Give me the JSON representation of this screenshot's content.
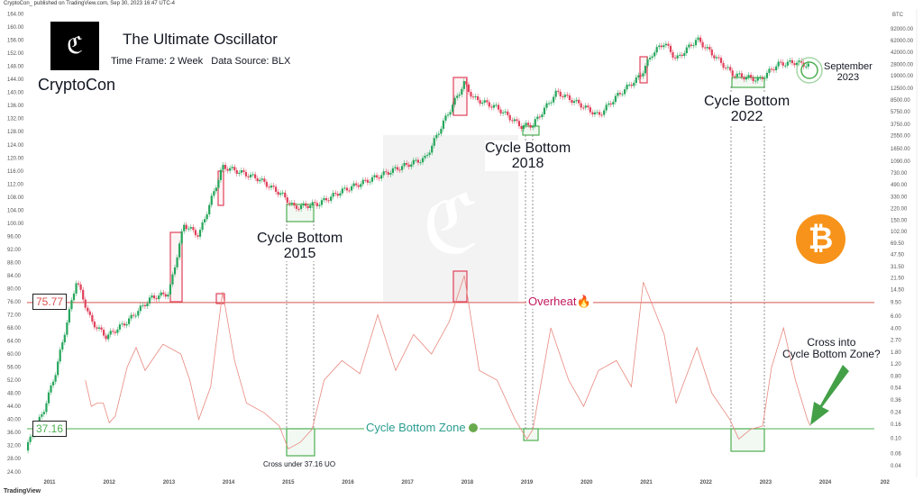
{
  "header": {
    "published": "CryptoCon_ published on TradingView.com, Sep 30, 2023 16:47 UTC-4"
  },
  "brand": {
    "name": "CryptoCon",
    "logo": "CC-monogram"
  },
  "title": "The Ultimate Oscillator",
  "subtitle": "Time Frame: 2 Week   Data Source: BLX",
  "footer": {
    "logo": "TradingView"
  },
  "colors": {
    "up": "#26a65b",
    "down": "#e0405a",
    "oscillator": "#e8897f",
    "overheat": "#d9534f",
    "bottom": "#4caf50",
    "zone_text": "#2a9d8f",
    "bitcoin": "#f7931a"
  },
  "annotations": {
    "overheat_value": "75.77",
    "bottom_value": "37.16",
    "overheat_label": "Overheat🔥",
    "zone_label": "Cycle Bottom Zone",
    "cb2015_a": "Cycle Bottom",
    "cb2015_b": "2015",
    "cb2018_a": "Cycle Bottom",
    "cb2018_b": "2018",
    "cb2022_a": "Cycle Bottom",
    "cb2022_b": "2022",
    "sept_a": "September",
    "sept_b": "2023",
    "cross_under": "Cross under 37.16 UO",
    "cross_into_a": "Cross into",
    "cross_into_b": "Cycle Bottom Zone?",
    "right_unit": "BTC",
    "bitcoin_icon": "bitcoin-logo"
  },
  "chart_data": {
    "type": "line",
    "x_ticks": [
      "2011",
      "2012",
      "2013",
      "2014",
      "2015",
      "2016",
      "2017",
      "2018",
      "2019",
      "2020",
      "2021",
      "2022",
      "2023",
      "2024",
      "202"
    ],
    "left_axis": {
      "ticks": [
        164,
        160,
        156,
        152,
        148,
        144,
        140,
        136,
        132,
        128,
        124,
        120,
        116,
        112,
        108,
        104,
        100,
        96,
        92,
        88,
        84,
        80,
        76,
        72,
        68,
        64,
        60,
        56,
        52,
        48,
        44,
        40,
        36,
        32,
        28,
        24
      ],
      "ylim": [
        22,
        165
      ]
    },
    "right_axis": {
      "scale": "log",
      "ticks": [
        "92000.00",
        "62000.00",
        "42000.00",
        "28000.00",
        "19000.00",
        "12500.00",
        "8500.00",
        "5750.00",
        "3750.00",
        "2550.00",
        "1650.00",
        "1090.00",
        "730.00",
        "490.00",
        "330.00",
        "220.00",
        "150.00",
        "102.00",
        "69.50",
        "47.50",
        "31.50",
        "21.50",
        "14.50",
        "9.50",
        "6.00",
        "4.00",
        "2.70",
        "1.80",
        "1.20",
        "0.80",
        "0.54",
        "0.36",
        "0.24",
        "0.16",
        "0.10",
        "0.06",
        "0.04"
      ]
    },
    "levels": {
      "overheat": 75.77,
      "cycle_bottom": 37.16
    },
    "series": [
      {
        "name": "BTC",
        "axis": "right",
        "points": [
          [
            2010.6,
            0.07
          ],
          [
            2010.9,
            0.25
          ],
          [
            2011.1,
            0.9
          ],
          [
            2011.45,
            20
          ],
          [
            2011.7,
            5
          ],
          [
            2011.95,
            3
          ],
          [
            2012.3,
            5
          ],
          [
            2012.7,
            11
          ],
          [
            2013.0,
            13
          ],
          [
            2013.25,
            130
          ],
          [
            2013.5,
            90
          ],
          [
            2013.9,
            900
          ],
          [
            2014.1,
            800
          ],
          [
            2014.5,
            600
          ],
          [
            2014.9,
            350
          ],
          [
            2015.1,
            230
          ],
          [
            2015.5,
            260
          ],
          [
            2015.9,
            400
          ],
          [
            2016.5,
            650
          ],
          [
            2016.9,
            900
          ],
          [
            2017.3,
            1200
          ],
          [
            2017.6,
            4000
          ],
          [
            2017.95,
            15000
          ],
          [
            2018.1,
            9000
          ],
          [
            2018.5,
            6500
          ],
          [
            2018.9,
            3500
          ],
          [
            2019.1,
            3700
          ],
          [
            2019.5,
            11000
          ],
          [
            2019.9,
            7200
          ],
          [
            2020.2,
            5000
          ],
          [
            2020.5,
            9500
          ],
          [
            2020.9,
            19000
          ],
          [
            2021.1,
            40000
          ],
          [
            2021.3,
            58000
          ],
          [
            2021.5,
            33000
          ],
          [
            2021.85,
            65000
          ],
          [
            2022.1,
            40000
          ],
          [
            2022.45,
            20000
          ],
          [
            2022.9,
            16500
          ],
          [
            2023.2,
            28000
          ],
          [
            2023.5,
            30000
          ],
          [
            2023.75,
            26500
          ]
        ]
      },
      {
        "name": "UO",
        "axis": "left",
        "points": [
          [
            2011.6,
            52
          ],
          [
            2011.7,
            44
          ],
          [
            2011.8,
            45
          ],
          [
            2011.9,
            45
          ],
          [
            2012.0,
            39
          ],
          [
            2012.1,
            41
          ],
          [
            2012.3,
            56
          ],
          [
            2012.45,
            62
          ],
          [
            2012.6,
            55
          ],
          [
            2012.9,
            63
          ],
          [
            2013.2,
            60
          ],
          [
            2013.35,
            52
          ],
          [
            2013.5,
            40
          ],
          [
            2013.7,
            50
          ],
          [
            2013.9,
            79
          ],
          [
            2014.1,
            58
          ],
          [
            2014.3,
            45
          ],
          [
            2014.6,
            42
          ],
          [
            2014.85,
            38
          ],
          [
            2015.0,
            31
          ],
          [
            2015.2,
            33
          ],
          [
            2015.4,
            37
          ],
          [
            2015.6,
            52
          ],
          [
            2015.9,
            58
          ],
          [
            2016.2,
            54
          ],
          [
            2016.5,
            72
          ],
          [
            2016.8,
            55
          ],
          [
            2017.1,
            66
          ],
          [
            2017.4,
            60
          ],
          [
            2017.7,
            70
          ],
          [
            2017.95,
            84
          ],
          [
            2018.2,
            55
          ],
          [
            2018.5,
            52
          ],
          [
            2018.8,
            40
          ],
          [
            2019.0,
            34
          ],
          [
            2019.1,
            37
          ],
          [
            2019.4,
            68
          ],
          [
            2019.7,
            52
          ],
          [
            2019.95,
            44
          ],
          [
            2020.2,
            55
          ],
          [
            2020.5,
            58
          ],
          [
            2020.75,
            50
          ],
          [
            2020.95,
            82
          ],
          [
            2021.3,
            66
          ],
          [
            2021.5,
            45
          ],
          [
            2021.85,
            62
          ],
          [
            2022.1,
            48
          ],
          [
            2022.4,
            40
          ],
          [
            2022.55,
            34
          ],
          [
            2022.75,
            37
          ],
          [
            2022.95,
            38
          ],
          [
            2023.1,
            56
          ],
          [
            2023.3,
            68
          ],
          [
            2023.5,
            52
          ],
          [
            2023.7,
            40
          ],
          [
            2023.75,
            38
          ]
        ]
      }
    ]
  }
}
